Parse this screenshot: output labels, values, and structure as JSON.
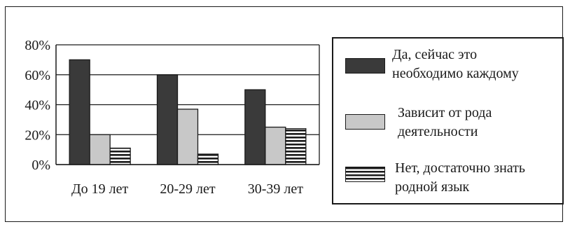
{
  "chart_data": {
    "type": "bar",
    "title": "",
    "xlabel": "",
    "ylabel": "",
    "categories": [
      "До 19 лет",
      "20-29 лет",
      "30-39 лет"
    ],
    "series": [
      {
        "name": "Да, сейчас это\nнеобходимо каждому",
        "values": [
          70,
          60,
          50
        ],
        "fill": "#3a3a3a",
        "pattern": "solid"
      },
      {
        "name": "Зависит от рода\nдеятельности",
        "values": [
          20,
          37,
          25
        ],
        "fill": "#c8c8c8",
        "pattern": "solid"
      },
      {
        "name": "Нет, достаточно знать\nродной язык",
        "values": [
          11,
          7,
          24
        ],
        "fill": "#ffffff",
        "pattern": "horizontal-stripes"
      }
    ],
    "ylim": [
      0,
      80
    ],
    "yticks": [
      0,
      20,
      40,
      60,
      80
    ],
    "ytick_labels": [
      "0%",
      "20%",
      "40%",
      "60%",
      "80%"
    ],
    "grid": true,
    "legend_position": "right"
  },
  "colors": {
    "frame": "#1a1a1a",
    "grid": "#1a1a1a",
    "stripe": "#1a1a1a"
  }
}
